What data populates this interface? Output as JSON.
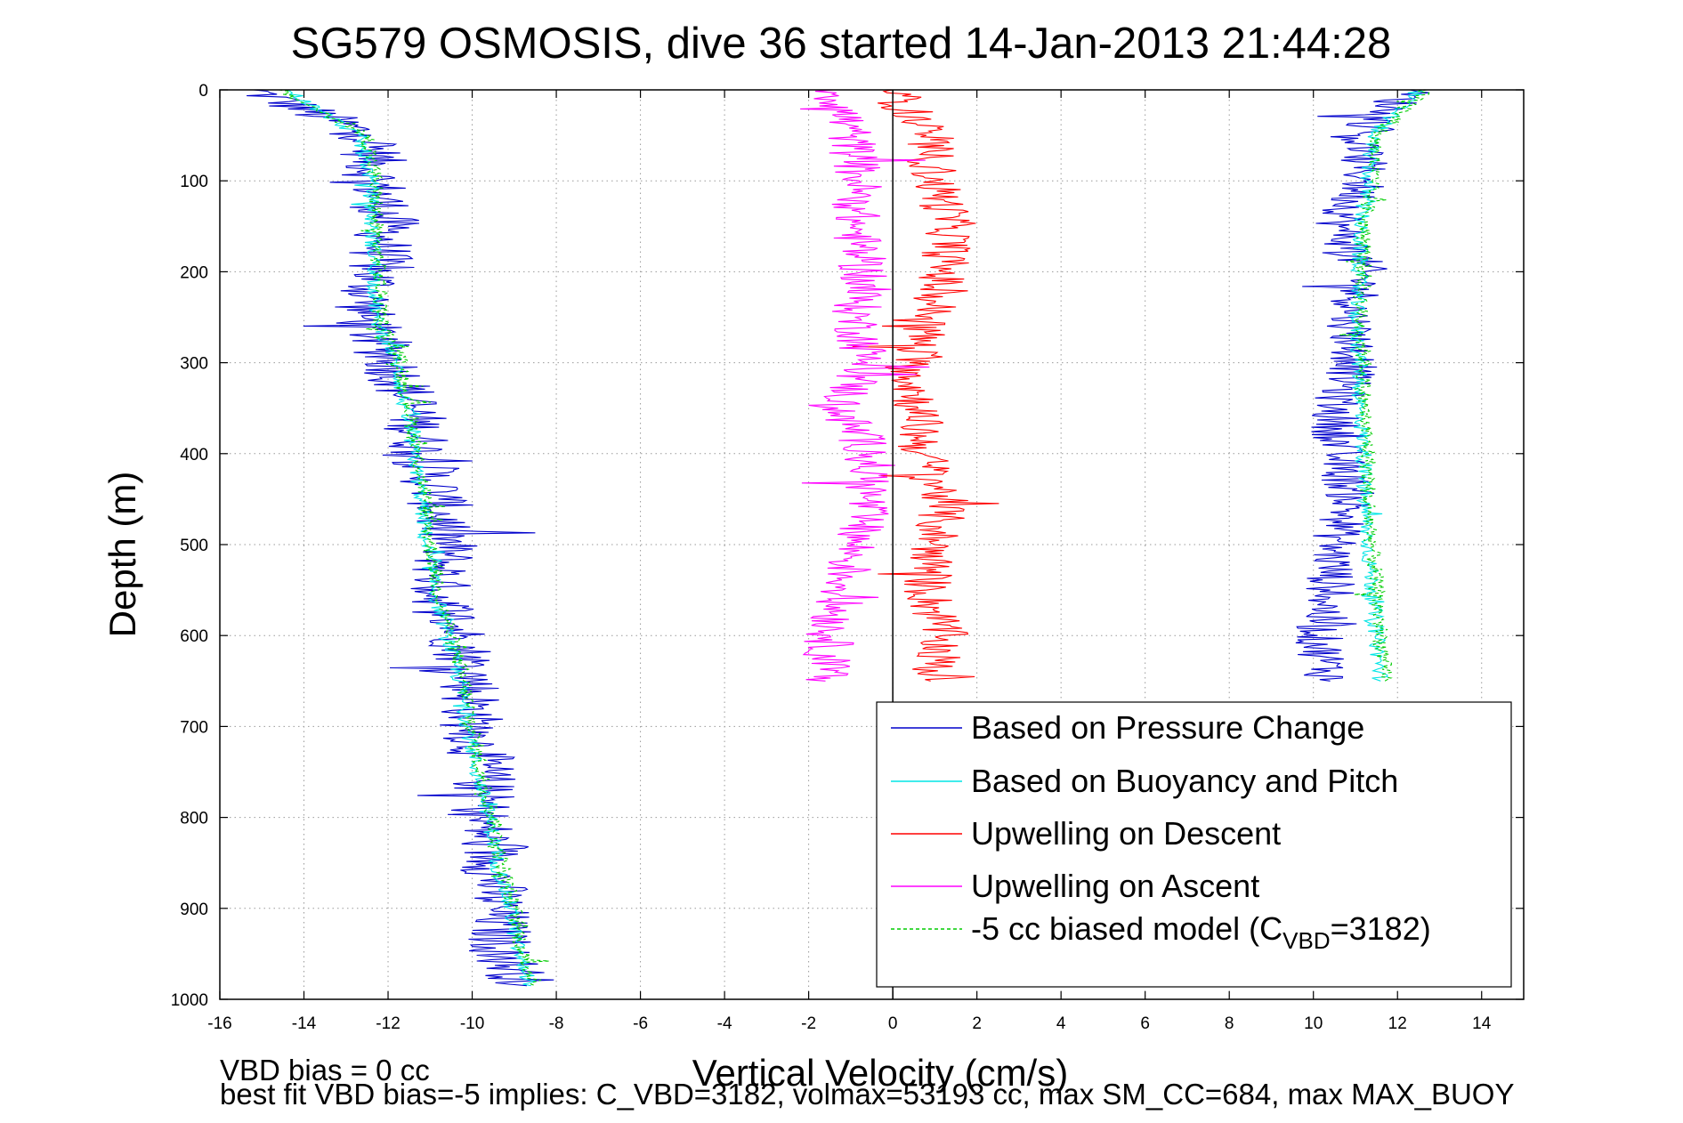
{
  "chart_data": {
    "type": "line",
    "title": "SG579 OSMOSIS, dive 36 started 14-Jan-2013 21:44:28",
    "xlabel": "Vertical Velocity (cm/s)",
    "ylabel": "Depth (m)",
    "xlim": [
      -16,
      15
    ],
    "ylim": [
      0,
      1000
    ],
    "y_reversed": true,
    "grid": true,
    "legend_position": "lower-right",
    "xticks": [
      -16,
      -14,
      -12,
      -10,
      -8,
      -6,
      -4,
      -2,
      0,
      2,
      4,
      6,
      8,
      10,
      12,
      14
    ],
    "yticks": [
      0,
      100,
      200,
      300,
      400,
      500,
      600,
      700,
      800,
      900,
      1000
    ],
    "depth": [
      0,
      50,
      100,
      150,
      200,
      250,
      300,
      350,
      400,
      450,
      500,
      550,
      600,
      650,
      700,
      750,
      800,
      850,
      900,
      950,
      985
    ],
    "series": [
      {
        "name": "Based on Pressure Change",
        "color": "#0000cc",
        "branches": [
          {
            "x": [
              -15.2,
              -12.4,
              -12.3,
              -12.0,
              -12.3,
              -12.6,
              -11.9,
              -11.4,
              -11.2,
              -10.8,
              -10.6,
              -10.8,
              -10.3,
              -10.0,
              -10.0,
              -9.7,
              -9.8,
              -9.5,
              -9.4,
              -9.3,
              -8.7
            ],
            "y": [
              0,
              50,
              100,
              150,
              200,
              250,
              300,
              350,
              400,
              450,
              500,
              550,
              600,
              650,
              700,
              750,
              800,
              850,
              900,
              950,
              985
            ],
            "noise": 0.8
          },
          {
            "x": [
              12.3,
              11.1,
              11.2,
              10.6,
              11.2,
              10.9,
              11.0,
              10.5,
              10.6,
              10.9,
              10.5,
              10.4,
              10.1,
              10.4
            ],
            "y": [
              0,
              50,
              100,
              150,
              200,
              250,
              300,
              350,
              400,
              450,
              500,
              550,
              600,
              650
            ],
            "noise": 0.6
          }
        ]
      },
      {
        "name": "Based on Buoyancy and Pitch",
        "color": "#00e5e5",
        "branches": [
          {
            "x": [
              -14.4,
              -12.7,
              -12.4,
              -12.4,
              -12.3,
              -12.3,
              -11.8,
              -11.6,
              -11.4,
              -11.2,
              -11.1,
              -10.9,
              -10.6,
              -10.3,
              -10.1,
              -9.9,
              -9.6,
              -9.4,
              -9.1,
              -8.9,
              -8.6
            ],
            "y": [
              0,
              50,
              100,
              150,
              200,
              250,
              300,
              350,
              400,
              450,
              500,
              550,
              600,
              650,
              700,
              750,
              800,
              850,
              900,
              950,
              985
            ],
            "noise": 0.2
          },
          {
            "x": [
              12.5,
              11.4,
              11.3,
              11.1,
              11.1,
              11.0,
              11.1,
              11.1,
              11.2,
              11.2,
              11.3,
              11.4,
              11.5,
              11.6
            ],
            "y": [
              0,
              50,
              100,
              150,
              200,
              250,
              300,
              350,
              400,
              450,
              500,
              550,
              600,
              650
            ],
            "noise": 0.2
          }
        ]
      },
      {
        "name": "Upwelling on Descent",
        "color": "#ff0000",
        "branches": [
          {
            "x": [
              0.0,
              0.8,
              1.0,
              1.4,
              1.2,
              0.9,
              0.4,
              0.6,
              0.7,
              1.2,
              1.0,
              0.8,
              1.2,
              0.9
            ],
            "y": [
              0,
              50,
              100,
              150,
              200,
              250,
              300,
              350,
              400,
              450,
              500,
              550,
              600,
              650
            ],
            "noise": 0.6
          }
        ]
      },
      {
        "name": "Upwelling on Ascent",
        "color": "#ff00ff",
        "branches": [
          {
            "x": [
              -1.4,
              -1.0,
              -0.8,
              -0.9,
              -0.7,
              -0.9,
              -0.6,
              -1.3,
              -0.5,
              -0.6,
              -0.9,
              -1.2,
              -1.5,
              -1.6
            ],
            "y": [
              0,
              50,
              100,
              150,
              200,
              250,
              300,
              350,
              400,
              450,
              500,
              550,
              600,
              650
            ],
            "noise": 0.6
          }
        ]
      },
      {
        "name": "-5 cc biased model (C_VBD=3182)",
        "color": "#00cc00",
        "dashed": true,
        "branches": [
          {
            "x": [
              -14.6,
              -12.5,
              -12.3,
              -12.3,
              -12.2,
              -12.2,
              -11.7,
              -11.5,
              -11.3,
              -11.1,
              -11.0,
              -10.8,
              -10.5,
              -10.2,
              -10.0,
              -9.8,
              -9.5,
              -9.3,
              -9.0,
              -8.8,
              -8.5
            ],
            "y": [
              0,
              50,
              100,
              150,
              200,
              250,
              300,
              350,
              400,
              450,
              500,
              550,
              600,
              650,
              700,
              750,
              800,
              850,
              900,
              950,
              985
            ],
            "noise": 0.2
          },
          {
            "x": [
              12.7,
              11.5,
              11.4,
              11.2,
              11.2,
              11.1,
              11.2,
              11.2,
              11.3,
              11.3,
              11.4,
              11.5,
              11.6,
              11.7
            ],
            "y": [
              0,
              50,
              100,
              150,
              200,
              250,
              300,
              350,
              400,
              450,
              500,
              550,
              600,
              650
            ],
            "noise": 0.2
          }
        ]
      }
    ],
    "legend": [
      {
        "text": "Based on Pressure Change",
        "color": "#0000cc",
        "dashed": false
      },
      {
        "text": "Based on Buoyancy and Pitch",
        "color": "#00e5e5",
        "dashed": false
      },
      {
        "text": "Upwelling on Descent",
        "color": "#ff0000",
        "dashed": false
      },
      {
        "text": "Upwelling on Ascent",
        "color": "#ff00ff",
        "dashed": false
      },
      {
        "text_prefix": "-5 cc biased model (C",
        "text_sub": "VBD",
        "text_suffix": "=3182)",
        "color": "#00cc00",
        "dashed": true
      }
    ],
    "annotations": [
      "VBD bias = 0 cc",
      "best fit VBD bias=-5 implies: C_VBD=3182, volmax=53193 cc, max SM_CC=684, max MAX_BUOY"
    ]
  }
}
